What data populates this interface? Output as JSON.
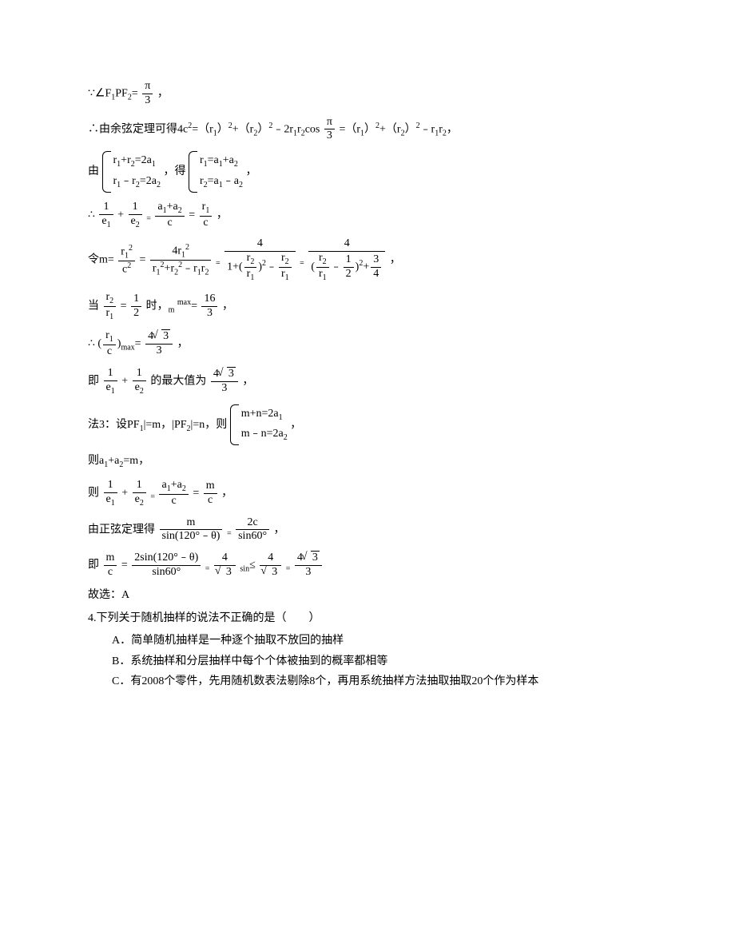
{
  "l1a": "∵∠F",
  "l1b": "PF",
  "l1c": "= ",
  "pi": "π",
  "three": "3",
  "comma": "，",
  "l2a": "∴由余弦定理可得4c",
  "l2b": "=（r",
  "l2c": "）",
  "l2d": "+（r",
  "l2e": "）",
  "l2f": "﹣2r",
  "l2g": "r",
  "l2h": "cos",
  "l2i": "=（r",
  "l2j": "）",
  "l2k": "+（r",
  "l2l": "）",
  "l2m": "﹣r",
  "l2n": "r",
  "l3a": "由",
  "l3b": "r",
  "l3c": "+r",
  "l3d": "=2a",
  "l3e": "r",
  "l3f": "﹣r",
  "l3g": "=2a",
  "l3h": "，得",
  "l3i": "r",
  "l3j": "=a",
  "l3k": "+a",
  "l3l": "r",
  "l3m": "=a",
  "l3n": "﹣a",
  "l4a": "∴",
  "one": "1",
  "e1": "e",
  "plus": "+",
  "eq": "=",
  "l4b": "a",
  "l4c": "+a",
  "c": "c",
  "r": "r",
  "l5a": "令m=",
  "l5b": "c",
  "l5c": "4r",
  "l5d": "r",
  "l5e": "+r",
  "l5f": "﹣r",
  "l5g": "r",
  "four": "4",
  "l5h": "1+(",
  "l5i": ")",
  "l5j": "﹣",
  "l5k": "(",
  "half": "1",
  "two": "2",
  "l5l": ")",
  "l5m": "+",
  "threequarter_n": "3",
  "threequarter_d": "4",
  "l6a": "当",
  "l6b": "时，",
  "m": "m",
  "max": "max",
  "sixteen": "16",
  "l7a": "∴",
  "l7b": "(",
  "l7c": ")",
  "foursqrt3": "4",
  "sqrt3": "3",
  "l8a": "即",
  "l8b": "的最大值为",
  "l9a": "法3：设PF",
  "l9b": "|=m，|PF",
  "l9c": "|=n，则",
  "l9d": "m+n=2a",
  "l9e": "m﹣n=2a",
  "l10": "则a",
  "l10b": "+a",
  "l10c": "=m，",
  "l11a": "则",
  "l12a": "由正弦定理得",
  "l12b": "sin(120°﹣θ)",
  "l12c": "2c",
  "l12d": "sin60°",
  "l13a": "即",
  "l13b": "2sin(120°﹣θ)",
  "l13c": "sin60°",
  "l13d": "sin",
  "le": "≤",
  "l14": "故选：A",
  "q4": "4.下列关于随机抽样的说法不正确的是（　　）",
  "q4a": "A．简单随机抽样是一种逐个抽取不放回的抽样",
  "q4b": "B．系统抽样和分层抽样中每个个体被抽到的概率都相等",
  "q4c": "C．有2008个零件，先用随机数表法剔除8个，再用系统抽样方法抽取抽取20个作为样本",
  "sub1": "1",
  "sub2": "2",
  "sup2": "2"
}
